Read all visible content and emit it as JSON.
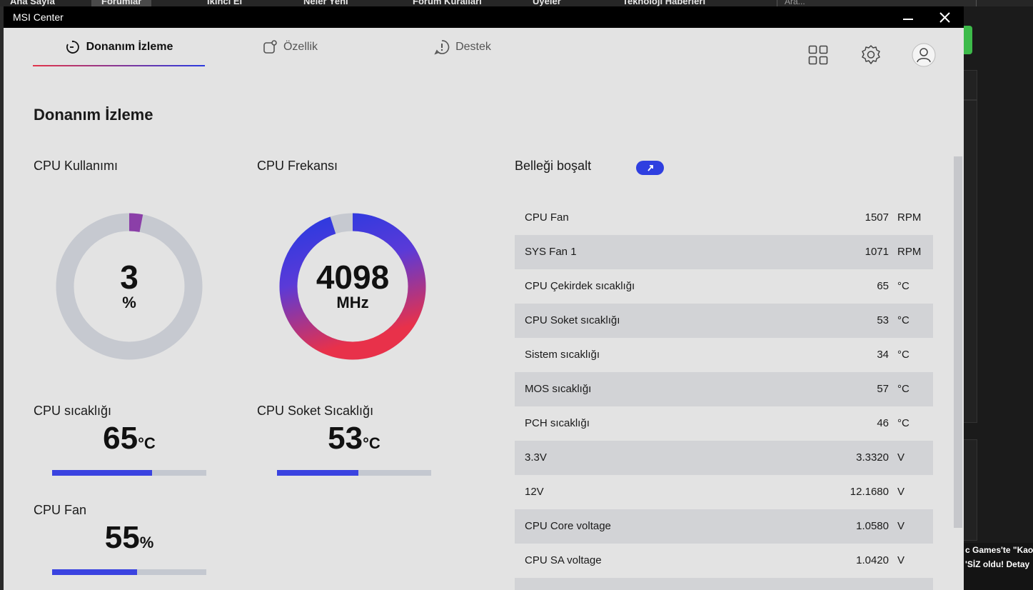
{
  "background": {
    "nav": [
      "Ana Sayfa",
      "Forumlar",
      "İkinci El",
      "Neler Yeni",
      "Forum Kuralları",
      "Üyeler",
      "Teknoloji Haberleri"
    ],
    "search_placeholder": "Ara...",
    "news_line1": "c Games'te \"Kaos",
    "news_line2": "'SİZ oldu! Detay"
  },
  "window": {
    "title": "MSI Center",
    "minimize_label": "–",
    "close_label": "✕"
  },
  "tabs": [
    {
      "label": "Donanım İzleme",
      "active": true
    },
    {
      "label": "Özellik",
      "active": false
    },
    {
      "label": "Destek",
      "active": false
    }
  ],
  "page_title": "Donanım İzleme",
  "cpu_usage": {
    "label": "CPU Kullanımı",
    "value": "3",
    "unit": "%",
    "fraction": 0.03
  },
  "cpu_freq": {
    "label": "CPU Frekansı",
    "value": "4098",
    "unit": "MHz",
    "fraction": 0.95
  },
  "cpu_temp": {
    "label": "CPU sıcaklığı",
    "value": "65",
    "unit": "°C",
    "fraction": 0.65
  },
  "cpu_socket_temp": {
    "label": "CPU Soket Sıcaklığı",
    "value": "53",
    "unit": "°C",
    "fraction": 0.53
  },
  "cpu_fan": {
    "label": "CPU Fan",
    "value": "55",
    "unit": "%",
    "fraction": 0.55
  },
  "free_memory": {
    "label": "Belleği boşalt"
  },
  "sensors": [
    {
      "name": "CPU Fan",
      "value": "1507",
      "unit": "RPM"
    },
    {
      "name": "SYS Fan 1",
      "value": "1071",
      "unit": "RPM"
    },
    {
      "name": "CPU Çekirdek sıcaklığı",
      "value": "65",
      "unit": "°C"
    },
    {
      "name": "CPU Soket sıcaklığı",
      "value": "53",
      "unit": "°C"
    },
    {
      "name": "Sistem sıcaklığı",
      "value": "34",
      "unit": "°C"
    },
    {
      "name": "MOS sıcaklığı",
      "value": "57",
      "unit": "°C"
    },
    {
      "name": "PCH sıcaklığı",
      "value": "46",
      "unit": "°C"
    },
    {
      "name": "3.3V",
      "value": "3.3320",
      "unit": "V"
    },
    {
      "name": "12V",
      "value": "12.1680",
      "unit": "V"
    },
    {
      "name": "CPU Core voltage",
      "value": "1.0580",
      "unit": "V"
    },
    {
      "name": "CPU SA voltage",
      "value": "1.0420",
      "unit": "V"
    }
  ],
  "colors": {
    "accent_blue": "#3a43e0",
    "accent_red": "#e3344a",
    "track": "#c4c8d0",
    "usage_purple": "#8b3fa8"
  }
}
